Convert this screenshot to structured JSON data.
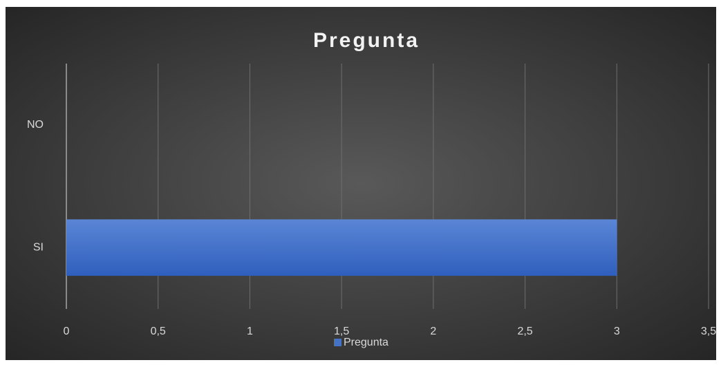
{
  "chart_data": {
    "type": "bar",
    "orientation": "horizontal",
    "title": "Pregunta",
    "categories": [
      "SI",
      "NO"
    ],
    "series": [
      {
        "name": "Pregunta",
        "color": "#4472c4",
        "values": [
          3,
          0
        ]
      }
    ],
    "xlim": [
      0,
      3.5
    ],
    "xticks": [
      0,
      {
        "value": 0.5,
        "label": "0,5"
      },
      1,
      {
        "value": 1.5,
        "label": "1,5"
      },
      2,
      {
        "value": 2.5,
        "label": "2,5"
      },
      3,
      {
        "value": 3.5,
        "label": "3,5"
      }
    ],
    "grid": true,
    "legend": "bottom"
  }
}
